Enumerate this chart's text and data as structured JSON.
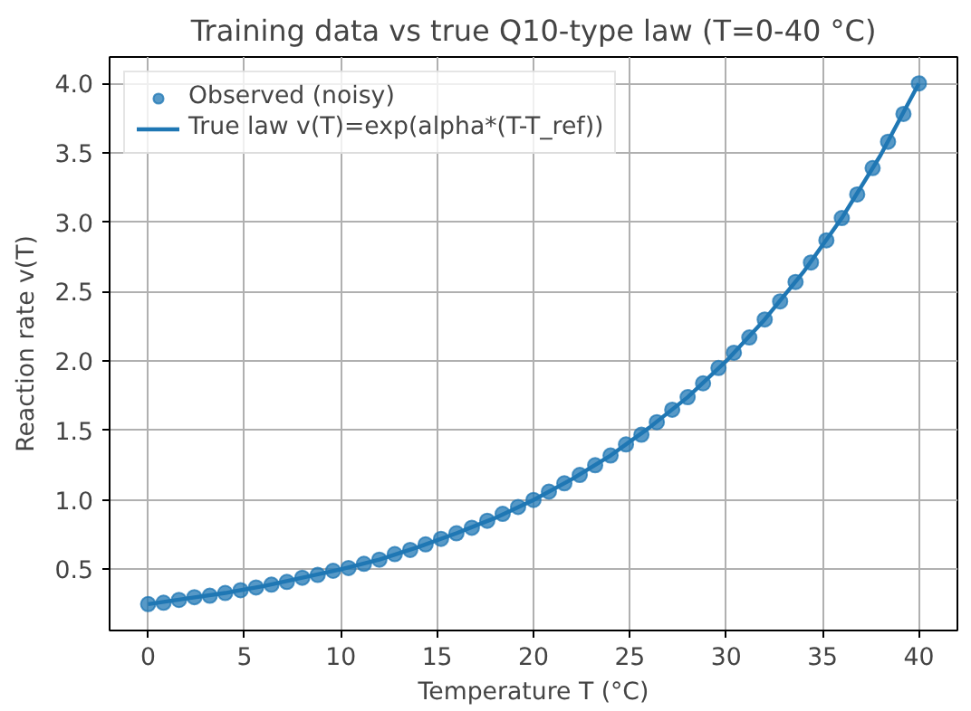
{
  "chart_data": {
    "type": "scatter",
    "title": "Training data vs true Q10-type law (T=0-40 °C)",
    "xlabel": "Temperature T (°C)",
    "ylabel": "Reaction rate v(T)",
    "xlim": [
      -2,
      42
    ],
    "ylim": [
      0.06,
      4.19
    ],
    "xticks": [
      0,
      5,
      10,
      15,
      20,
      25,
      30,
      35,
      40
    ],
    "yticks": [
      {
        "value": 0.5,
        "label": "0.5"
      },
      {
        "value": 1,
        "label": "1.0"
      },
      {
        "value": 1.5,
        "label": "1.5"
      },
      {
        "value": 2,
        "label": "2.0"
      },
      {
        "value": 2.5,
        "label": "2.5"
      },
      {
        "value": 3,
        "label": "3.0"
      },
      {
        "value": 3.5,
        "label": "3.5"
      },
      {
        "value": 4,
        "label": "4.0"
      }
    ],
    "grid": true,
    "legend": "top left",
    "series": [
      {
        "name": "Observed (noisy)",
        "marker": "circle",
        "color": "#1f77b4",
        "x": [
          0,
          0.8,
          1.6,
          2.4,
          3.2,
          4.0,
          4.8,
          5.6,
          6.4,
          7.2,
          8.0,
          8.8,
          9.6,
          10.4,
          11.2,
          12.0,
          12.8,
          13.6,
          14.4,
          15.2,
          16.0,
          16.8,
          17.6,
          18.4,
          19.2,
          20.0,
          20.8,
          21.6,
          22.4,
          23.2,
          24.0,
          24.8,
          25.6,
          26.4,
          27.2,
          28.0,
          28.8,
          29.6,
          30.4,
          31.2,
          32.0,
          32.8,
          33.6,
          34.4,
          35.2,
          36.0,
          36.8,
          37.6,
          38.4,
          39.2,
          40.0
        ],
        "values": [
          0.25,
          0.26,
          0.28,
          0.3,
          0.31,
          0.33,
          0.35,
          0.37,
          0.39,
          0.41,
          0.44,
          0.46,
          0.49,
          0.51,
          0.54,
          0.57,
          0.61,
          0.64,
          0.68,
          0.72,
          0.76,
          0.8,
          0.85,
          0.9,
          0.95,
          1.0,
          1.06,
          1.12,
          1.18,
          1.25,
          1.32,
          1.4,
          1.47,
          1.56,
          1.65,
          1.74,
          1.84,
          1.95,
          2.06,
          2.17,
          2.3,
          2.43,
          2.57,
          2.71,
          2.87,
          3.03,
          3.2,
          3.39,
          3.58,
          3.78,
          4.0
        ]
      },
      {
        "name": "True law v(T)=exp(alpha*(T-T_ref))",
        "type": "line",
        "line_style": "solid",
        "color": "#1f77b4",
        "x": [
          0,
          2,
          4,
          6,
          8,
          10,
          12,
          14,
          16,
          18,
          20,
          22,
          24,
          26,
          28,
          30,
          32,
          34,
          36,
          38,
          40
        ],
        "values": [
          0.25,
          0.29,
          0.33,
          0.38,
          0.44,
          0.5,
          0.57,
          0.66,
          0.76,
          0.87,
          1.0,
          1.15,
          1.32,
          1.52,
          1.74,
          2.0,
          2.3,
          2.64,
          3.03,
          3.48,
          4.0
        ]
      }
    ]
  }
}
